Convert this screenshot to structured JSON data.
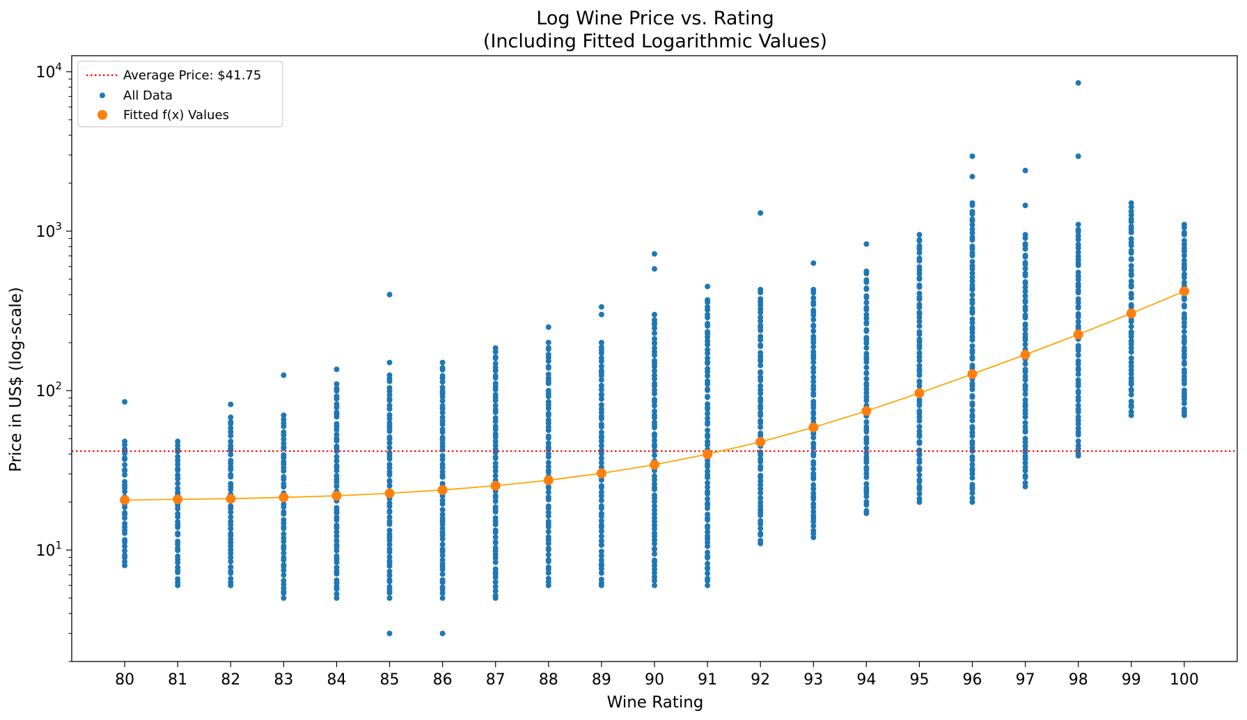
{
  "chart_data": {
    "type": "scatter",
    "title": [
      "Log Wine Price vs. Rating",
      "(Including Fitted Logarithmic Values)"
    ],
    "xlabel": "Wine Rating",
    "ylabel": "Price in US$ (log-scale)",
    "yscale": "log",
    "xlim": [
      79,
      101
    ],
    "ylim": [
      2,
      12600
    ],
    "x_ticks": [
      "80",
      "81",
      "82",
      "83",
      "84",
      "85",
      "86",
      "87",
      "88",
      "89",
      "90",
      "91",
      "92",
      "93",
      "94",
      "95",
      "96",
      "97",
      "98",
      "99",
      "100"
    ],
    "y_ticks": [
      {
        "value": 10,
        "base": "10",
        "exp": "1"
      },
      {
        "value": 100,
        "base": "10",
        "exp": "2"
      },
      {
        "value": 1000,
        "base": "10",
        "exp": "3"
      },
      {
        "value": 10000,
        "base": "10",
        "exp": "4"
      }
    ],
    "legend_position": "top-left",
    "average_price": {
      "label": "Average Price: $41.75",
      "value": 41.75,
      "color": "#ff0000"
    },
    "fitted": {
      "name": "Fitted f(x) Values",
      "color": "#ff7f0e",
      "line_color": "#ffa500",
      "x": [
        80,
        81,
        82,
        83,
        84,
        85,
        86,
        87,
        88,
        89,
        90,
        91,
        92,
        93,
        94,
        95,
        96,
        97,
        98,
        99,
        100
      ],
      "y": [
        20.6,
        20.8,
        21.0,
        21.4,
        21.9,
        22.7,
        23.8,
        25.3,
        27.4,
        30.3,
        34.3,
        39.9,
        47.7,
        58.8,
        74.5,
        96.5,
        127,
        168,
        225,
        305,
        420
      ]
    },
    "all_data": {
      "name": "All Data",
      "color": "#1f77b4",
      "columns": [
        {
          "x": 80,
          "min": 8,
          "max": 48,
          "outliers": [
            85
          ]
        },
        {
          "x": 81,
          "min": 6,
          "max": 48,
          "outliers": []
        },
        {
          "x": 82,
          "min": 6,
          "max": 68,
          "outliers": [
            82
          ]
        },
        {
          "x": 83,
          "min": 5,
          "max": 70,
          "outliers": [
            125
          ]
        },
        {
          "x": 84,
          "min": 5,
          "max": 110,
          "outliers": [
            136
          ]
        },
        {
          "x": 85,
          "min": 5,
          "max": 125,
          "outliers": [
            3,
            150,
            400
          ]
        },
        {
          "x": 86,
          "min": 5,
          "max": 150,
          "outliers": [
            3
          ]
        },
        {
          "x": 87,
          "min": 5,
          "max": 185,
          "outliers": []
        },
        {
          "x": 88,
          "min": 6,
          "max": 200,
          "outliers": [
            250
          ]
        },
        {
          "x": 89,
          "min": 6,
          "max": 200,
          "outliers": [
            300,
            335
          ]
        },
        {
          "x": 90,
          "min": 6,
          "max": 300,
          "outliers": [
            580,
            720
          ]
        },
        {
          "x": 91,
          "min": 6,
          "max": 370,
          "outliers": [
            450
          ]
        },
        {
          "x": 92,
          "min": 11,
          "max": 430,
          "outliers": [
            1300
          ]
        },
        {
          "x": 93,
          "min": 12,
          "max": 430,
          "outliers": [
            630
          ]
        },
        {
          "x": 94,
          "min": 17,
          "max": 560,
          "outliers": [
            830
          ]
        },
        {
          "x": 95,
          "min": 20,
          "max": 950,
          "outliers": []
        },
        {
          "x": 96,
          "min": 20,
          "max": 1500,
          "outliers": [
            2200,
            2950
          ]
        },
        {
          "x": 97,
          "min": 25,
          "max": 950,
          "outliers": [
            1450,
            2400
          ]
        },
        {
          "x": 98,
          "min": 39,
          "max": 1100,
          "outliers": [
            2950,
            8500
          ]
        },
        {
          "x": 99,
          "min": 70,
          "max": 1500,
          "outliers": []
        },
        {
          "x": 100,
          "min": 70,
          "max": 1100,
          "outliers": []
        }
      ]
    }
  }
}
